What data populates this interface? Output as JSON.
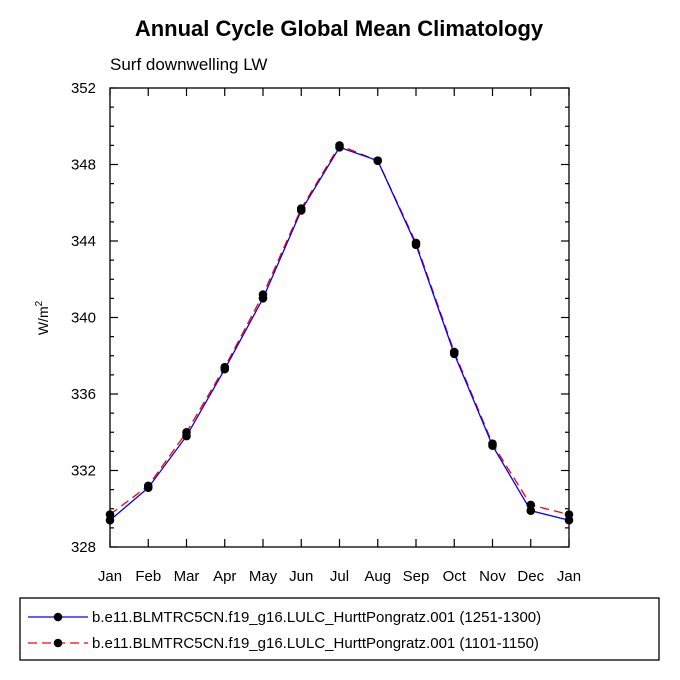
{
  "chart_data": {
    "type": "line",
    "title": "Annual Cycle Global Mean Climatology",
    "subtitle": "Surf downwelling LW",
    "ylabel": "W/m",
    "ylabel_superscript": "2",
    "xlabel": "",
    "categories": [
      "Jan",
      "Feb",
      "Mar",
      "Apr",
      "May",
      "Jun",
      "Jul",
      "Aug",
      "Sep",
      "Oct",
      "Nov",
      "Dec",
      "Jan"
    ],
    "ylim": [
      328,
      352
    ],
    "yticks": [
      328,
      332,
      336,
      340,
      344,
      348,
      352
    ],
    "grid": false,
    "legend_position": "bottom",
    "series": [
      {
        "name": "b.e11.BLMTRC5CN.f19_g16.LULC_HurttPongratz.001 (1251-1300)",
        "color": "#0000ff",
        "dash": "solid",
        "values": [
          329.4,
          331.1,
          333.8,
          337.3,
          341.0,
          345.6,
          348.9,
          348.2,
          343.8,
          338.1,
          333.3,
          329.9,
          329.4
        ]
      },
      {
        "name": "b.e11.BLMTRC5CN.f19_g16.LULC_HurttPongratz.001 (1101-1150)",
        "color": "#ff0000",
        "dash": "dashed",
        "values": [
          329.7,
          331.2,
          334.0,
          337.4,
          341.2,
          345.7,
          349.0,
          348.2,
          343.9,
          338.2,
          333.4,
          330.2,
          329.7
        ]
      }
    ]
  }
}
